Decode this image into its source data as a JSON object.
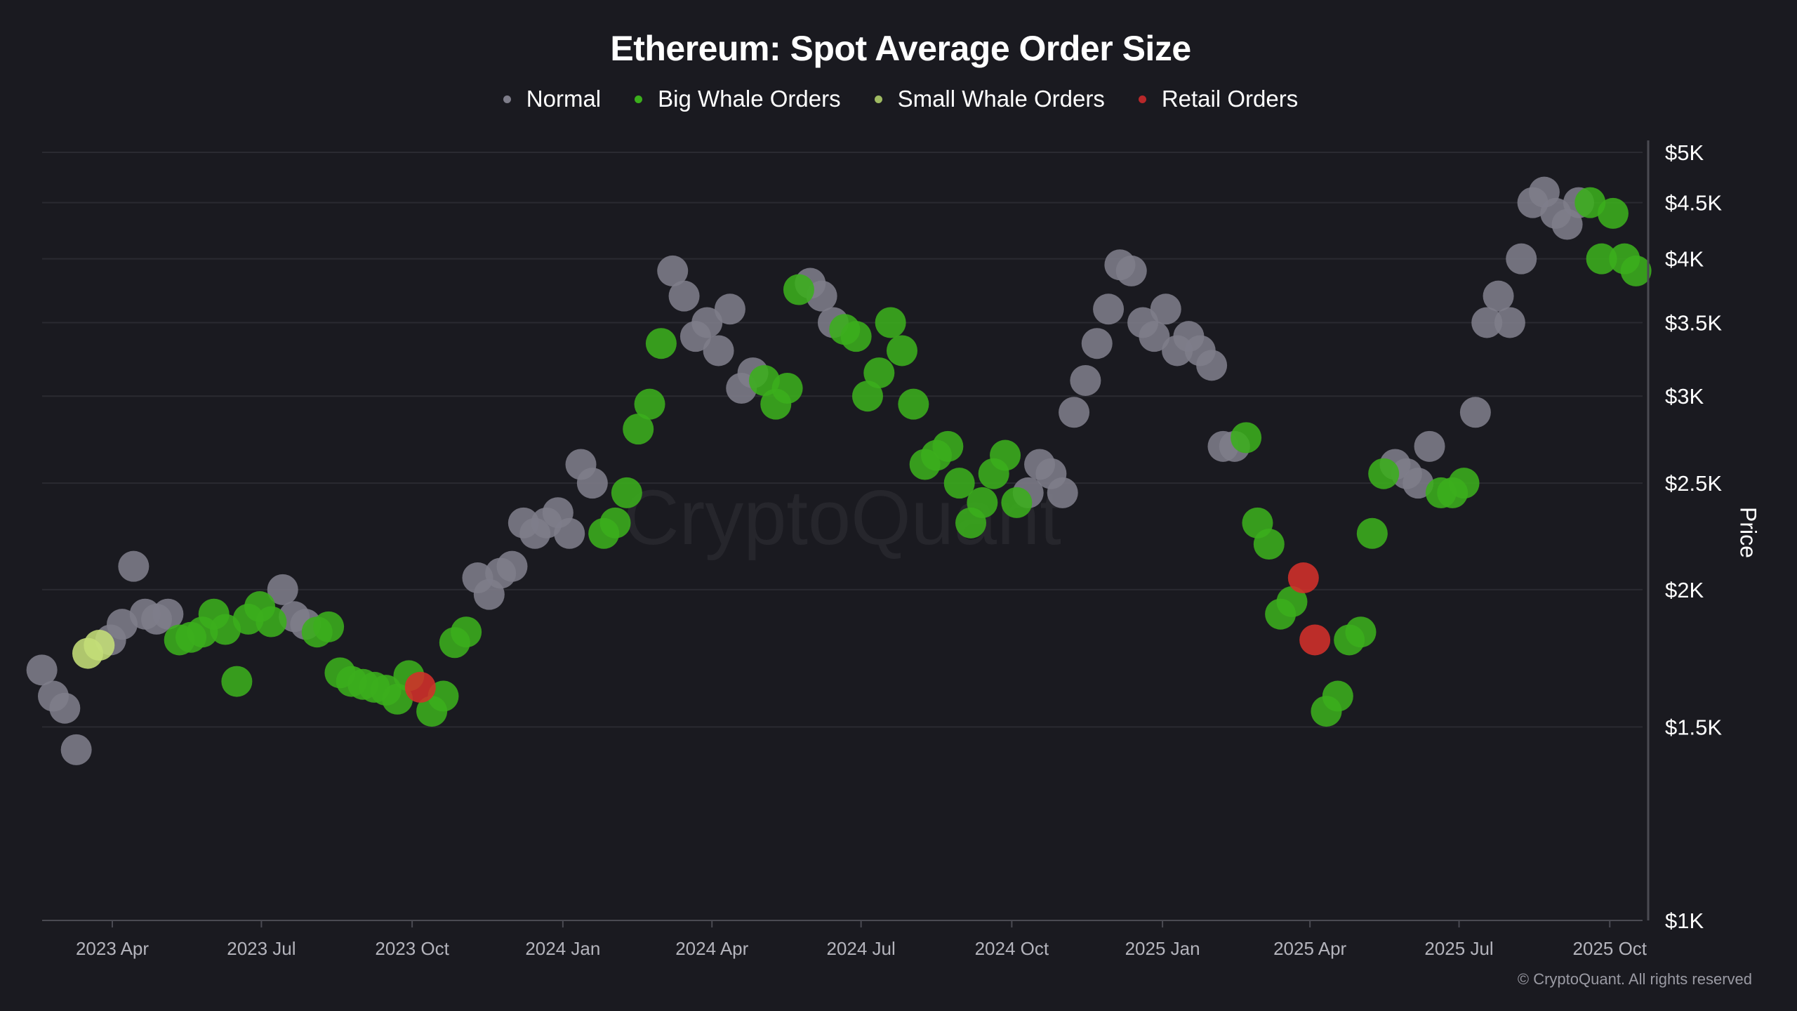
{
  "chart_data": {
    "type": "scatter",
    "title": "Ethereum: Spot Average Order Size",
    "ylabel": "Price",
    "xlabel": "",
    "y_scale": "log",
    "ylim": [
      1000,
      5000
    ],
    "xlim": [
      "2023-02-15",
      "2025-10-22"
    ],
    "grid": "horizontal",
    "legend_position": "top",
    "y_ticks": [
      "$1K",
      "$1.5K",
      "$2K",
      "$2.5K",
      "$3K",
      "$3.5K",
      "$4K",
      "$4.5K",
      "$5K"
    ],
    "y_tick_values": [
      1000,
      1500,
      2000,
      2500,
      3000,
      3500,
      4000,
      4500,
      5000
    ],
    "x_ticks": [
      "2023 Apr",
      "2023 Jul",
      "2023 Oct",
      "2024 Jan",
      "2024 Apr",
      "2024 Jul",
      "2024 Oct",
      "2025 Jan",
      "2025 Apr",
      "2025 Jul",
      "2025 Oct"
    ],
    "x_tick_dates": [
      "2023-04-01",
      "2023-07-01",
      "2023-10-01",
      "2024-01-01",
      "2024-04-01",
      "2024-07-01",
      "2024-10-01",
      "2025-01-01",
      "2025-04-01",
      "2025-07-01",
      "2025-10-01"
    ],
    "series": [
      {
        "key": "N",
        "name": "Normal",
        "color": "#7e7d8a"
      },
      {
        "key": "B",
        "name": "Big Whale Orders",
        "color": "#3bae1c"
      },
      {
        "key": "S",
        "name": "Small Whale Orders",
        "color": "#c4de78"
      },
      {
        "key": "R",
        "name": "Retail Orders",
        "color": "#d3302a"
      }
    ],
    "points": [
      [
        "2023-02-17",
        1690,
        "N"
      ],
      [
        "2023-02-24",
        1600,
        "N"
      ],
      [
        "2023-03-03",
        1560,
        "N"
      ],
      [
        "2023-03-10",
        1430,
        "N"
      ],
      [
        "2023-03-17",
        1750,
        "S"
      ],
      [
        "2023-03-24",
        1780,
        "S"
      ],
      [
        "2023-03-31",
        1800,
        "N"
      ],
      [
        "2023-04-07",
        1860,
        "N"
      ],
      [
        "2023-04-14",
        2100,
        "N"
      ],
      [
        "2023-04-21",
        1900,
        "N"
      ],
      [
        "2023-04-28",
        1880,
        "N"
      ],
      [
        "2023-05-05",
        1900,
        "N"
      ],
      [
        "2023-05-12",
        1800,
        "B"
      ],
      [
        "2023-05-19",
        1810,
        "B"
      ],
      [
        "2023-05-26",
        1830,
        "B"
      ],
      [
        "2023-06-02",
        1900,
        "B"
      ],
      [
        "2023-06-09",
        1840,
        "B"
      ],
      [
        "2023-06-16",
        1650,
        "B"
      ],
      [
        "2023-06-23",
        1880,
        "B"
      ],
      [
        "2023-06-30",
        1930,
        "B"
      ],
      [
        "2023-07-07",
        1870,
        "B"
      ],
      [
        "2023-07-14",
        2000,
        "N"
      ],
      [
        "2023-07-21",
        1890,
        "N"
      ],
      [
        "2023-07-28",
        1860,
        "N"
      ],
      [
        "2023-08-04",
        1830,
        "B"
      ],
      [
        "2023-08-11",
        1850,
        "B"
      ],
      [
        "2023-08-18",
        1680,
        "B"
      ],
      [
        "2023-08-25",
        1650,
        "B"
      ],
      [
        "2023-09-01",
        1640,
        "B"
      ],
      [
        "2023-09-08",
        1630,
        "B"
      ],
      [
        "2023-09-15",
        1620,
        "B"
      ],
      [
        "2023-09-22",
        1590,
        "B"
      ],
      [
        "2023-09-29",
        1670,
        "B"
      ],
      [
        "2023-10-06",
        1630,
        "R"
      ],
      [
        "2023-10-13",
        1550,
        "B"
      ],
      [
        "2023-10-20",
        1600,
        "B"
      ],
      [
        "2023-10-27",
        1790,
        "B"
      ],
      [
        "2023-11-03",
        1830,
        "B"
      ],
      [
        "2023-11-10",
        2050,
        "N"
      ],
      [
        "2023-11-17",
        1980,
        "N"
      ],
      [
        "2023-11-24",
        2070,
        "N"
      ],
      [
        "2023-12-01",
        2100,
        "N"
      ],
      [
        "2023-12-08",
        2300,
        "N"
      ],
      [
        "2023-12-15",
        2250,
        "N"
      ],
      [
        "2023-12-22",
        2300,
        "N"
      ],
      [
        "2023-12-29",
        2350,
        "N"
      ],
      [
        "2024-01-05",
        2250,
        "N"
      ],
      [
        "2024-01-12",
        2600,
        "N"
      ],
      [
        "2024-01-19",
        2500,
        "N"
      ],
      [
        "2024-01-26",
        2250,
        "B"
      ],
      [
        "2024-02-02",
        2300,
        "B"
      ],
      [
        "2024-02-09",
        2450,
        "B"
      ],
      [
        "2024-02-16",
        2800,
        "B"
      ],
      [
        "2024-02-23",
        2950,
        "B"
      ],
      [
        "2024-03-01",
        3350,
        "B"
      ],
      [
        "2024-03-08",
        3900,
        "N"
      ],
      [
        "2024-03-15",
        3700,
        "N"
      ],
      [
        "2024-03-22",
        3400,
        "N"
      ],
      [
        "2024-03-29",
        3500,
        "N"
      ],
      [
        "2024-04-05",
        3300,
        "N"
      ],
      [
        "2024-04-12",
        3600,
        "N"
      ],
      [
        "2024-04-19",
        3050,
        "N"
      ],
      [
        "2024-04-26",
        3150,
        "N"
      ],
      [
        "2024-05-03",
        3100,
        "B"
      ],
      [
        "2024-05-10",
        2950,
        "B"
      ],
      [
        "2024-05-17",
        3050,
        "B"
      ],
      [
        "2024-05-24",
        3750,
        "B"
      ],
      [
        "2024-05-31",
        3800,
        "N"
      ],
      [
        "2024-06-07",
        3700,
        "N"
      ],
      [
        "2024-06-14",
        3500,
        "N"
      ],
      [
        "2024-06-21",
        3450,
        "B"
      ],
      [
        "2024-06-28",
        3400,
        "B"
      ],
      [
        "2024-07-05",
        3000,
        "B"
      ],
      [
        "2024-07-12",
        3150,
        "B"
      ],
      [
        "2024-07-19",
        3500,
        "B"
      ],
      [
        "2024-07-26",
        3300,
        "B"
      ],
      [
        "2024-08-02",
        2950,
        "B"
      ],
      [
        "2024-08-09",
        2600,
        "B"
      ],
      [
        "2024-08-16",
        2650,
        "B"
      ],
      [
        "2024-08-23",
        2700,
        "B"
      ],
      [
        "2024-08-30",
        2500,
        "B"
      ],
      [
        "2024-09-06",
        2300,
        "B"
      ],
      [
        "2024-09-13",
        2400,
        "B"
      ],
      [
        "2024-09-20",
        2550,
        "B"
      ],
      [
        "2024-09-27",
        2650,
        "B"
      ],
      [
        "2024-10-04",
        2400,
        "B"
      ],
      [
        "2024-10-11",
        2450,
        "N"
      ],
      [
        "2024-10-18",
        2600,
        "N"
      ],
      [
        "2024-10-25",
        2550,
        "N"
      ],
      [
        "2024-11-01",
        2450,
        "N"
      ],
      [
        "2024-11-08",
        2900,
        "N"
      ],
      [
        "2024-11-15",
        3100,
        "N"
      ],
      [
        "2024-11-22",
        3350,
        "N"
      ],
      [
        "2024-11-29",
        3600,
        "N"
      ],
      [
        "2024-12-06",
        3950,
        "N"
      ],
      [
        "2024-12-13",
        3900,
        "N"
      ],
      [
        "2024-12-20",
        3500,
        "N"
      ],
      [
        "2024-12-27",
        3400,
        "N"
      ],
      [
        "2025-01-03",
        3600,
        "N"
      ],
      [
        "2025-01-10",
        3300,
        "N"
      ],
      [
        "2025-01-17",
        3400,
        "N"
      ],
      [
        "2025-01-24",
        3300,
        "N"
      ],
      [
        "2025-01-31",
        3200,
        "N"
      ],
      [
        "2025-02-07",
        2700,
        "N"
      ],
      [
        "2025-02-14",
        2700,
        "N"
      ],
      [
        "2025-02-21",
        2750,
        "B"
      ],
      [
        "2025-02-28",
        2300,
        "B"
      ],
      [
        "2025-03-07",
        2200,
        "B"
      ],
      [
        "2025-03-14",
        1900,
        "B"
      ],
      [
        "2025-03-21",
        1950,
        "B"
      ],
      [
        "2025-03-28",
        2050,
        "R"
      ],
      [
        "2025-04-04",
        1800,
        "R"
      ],
      [
        "2025-04-11",
        1550,
        "B"
      ],
      [
        "2025-04-18",
        1600,
        "B"
      ],
      [
        "2025-04-25",
        1800,
        "B"
      ],
      [
        "2025-05-02",
        1830,
        "B"
      ],
      [
        "2025-05-09",
        2250,
        "B"
      ],
      [
        "2025-05-16",
        2550,
        "B"
      ],
      [
        "2025-05-23",
        2600,
        "N"
      ],
      [
        "2025-05-30",
        2550,
        "N"
      ],
      [
        "2025-06-06",
        2500,
        "N"
      ],
      [
        "2025-06-13",
        2700,
        "N"
      ],
      [
        "2025-06-20",
        2450,
        "B"
      ],
      [
        "2025-06-27",
        2450,
        "B"
      ],
      [
        "2025-07-04",
        2500,
        "B"
      ],
      [
        "2025-07-11",
        2900,
        "N"
      ],
      [
        "2025-07-18",
        3500,
        "N"
      ],
      [
        "2025-07-25",
        3700,
        "N"
      ],
      [
        "2025-08-01",
        3500,
        "N"
      ],
      [
        "2025-08-08",
        4000,
        "N"
      ],
      [
        "2025-08-15",
        4500,
        "N"
      ],
      [
        "2025-08-22",
        4600,
        "N"
      ],
      [
        "2025-08-29",
        4400,
        "N"
      ],
      [
        "2025-09-05",
        4300,
        "N"
      ],
      [
        "2025-09-12",
        4500,
        "N"
      ],
      [
        "2025-09-19",
        4500,
        "B"
      ],
      [
        "2025-09-26",
        4000,
        "B"
      ],
      [
        "2025-10-03",
        4400,
        "B"
      ],
      [
        "2025-10-10",
        4000,
        "B"
      ],
      [
        "2025-10-17",
        3900,
        "B"
      ]
    ]
  },
  "watermark": "CryptoQuant",
  "credit": "© CryptoQuant. All rights reserved",
  "colors": {
    "background": "#1a1a20",
    "grid": "#2a2a31",
    "axis": "#4a4a52"
  }
}
